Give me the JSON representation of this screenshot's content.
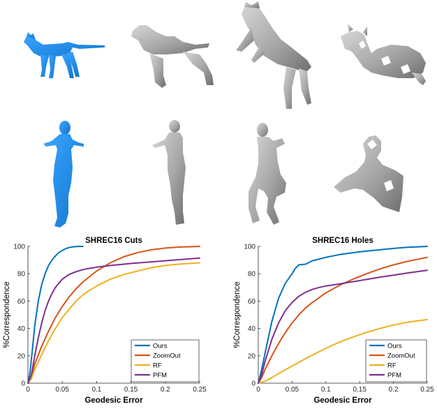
{
  "figure": {
    "colors": {
      "source_mesh": "#1f8fe8",
      "target_mesh": "#a9a9a9",
      "axis": "#262626"
    },
    "mesh_rows": [
      {
        "subject": "cat",
        "icons": [
          "cat-source-icon",
          "cat-cut-partial-icon",
          "cat-cut-pose-icon",
          "cat-holes-icon"
        ]
      },
      {
        "subject": "human",
        "icons": [
          "human-source-icon",
          "human-cut-partial-icon",
          "human-crouch-icon",
          "human-holes-icon"
        ]
      }
    ]
  },
  "chart_data": [
    {
      "type": "line",
      "title": "SHREC16 Cuts",
      "xlabel": "Geodesic Error",
      "ylabel": "%Correspondence",
      "xlim": [
        0,
        0.25
      ],
      "ylim": [
        0,
        100
      ],
      "xticks": [
        "0",
        "0.05",
        "0.1",
        "0.15",
        "0.2",
        "0.25"
      ],
      "yticks": [
        "0",
        "20",
        "40",
        "60",
        "80",
        "100"
      ],
      "legend_position": "bottom-right",
      "grid": false,
      "series": [
        {
          "name": "Ours",
          "color": "#0072BD",
          "x": [
            0,
            0.003,
            0.006,
            0.01,
            0.015,
            0.02,
            0.025,
            0.03,
            0.035,
            0.04,
            0.045,
            0.05,
            0.055,
            0.06,
            0.065,
            0.07,
            0.075,
            0.08
          ],
          "y": [
            0,
            8,
            22,
            42,
            60,
            72,
            80,
            86,
            90,
            93,
            95.5,
            97,
            98.3,
            99.2,
            99.6,
            99.9,
            100,
            100
          ]
        },
        {
          "name": "ZoomOut",
          "color": "#D95319",
          "x": [
            0,
            0.005,
            0.01,
            0.02,
            0.03,
            0.04,
            0.05,
            0.06,
            0.07,
            0.08,
            0.09,
            0.1,
            0.12,
            0.14,
            0.16,
            0.18,
            0.2,
            0.22,
            0.25
          ],
          "y": [
            0,
            5,
            14,
            27,
            38,
            48,
            56,
            63,
            69,
            74,
            78,
            82,
            88,
            92.5,
            95.5,
            97.5,
            98.8,
            99.5,
            100
          ]
        },
        {
          "name": "RF",
          "color": "#EDB120",
          "x": [
            0,
            0.005,
            0.01,
            0.02,
            0.03,
            0.04,
            0.05,
            0.06,
            0.07,
            0.08,
            0.09,
            0.1,
            0.12,
            0.14,
            0.16,
            0.18,
            0.2,
            0.22,
            0.25
          ],
          "y": [
            0,
            3,
            10,
            21,
            31,
            40,
            48,
            54,
            60,
            64.5,
            68,
            71,
            76,
            79.5,
            82,
            84.5,
            86,
            87,
            88
          ]
        },
        {
          "name": "PFM",
          "color": "#7E2F8E",
          "x": [
            0,
            0.005,
            0.01,
            0.015,
            0.02,
            0.025,
            0.03,
            0.035,
            0.04,
            0.05,
            0.06,
            0.07,
            0.08,
            0.09,
            0.1,
            0.12,
            0.15,
            0.2,
            0.25
          ],
          "y": [
            0,
            6,
            20,
            33,
            44,
            53,
            60,
            65.5,
            70,
            76,
            79.5,
            81.5,
            83,
            84,
            84.8,
            86,
            87.5,
            89.5,
            91.5
          ]
        }
      ]
    },
    {
      "type": "line",
      "title": "SHREC16 Holes",
      "xlabel": "Geodesic Error",
      "ylabel": "%Correspondence",
      "xlim": [
        0,
        0.25
      ],
      "ylim": [
        0,
        100
      ],
      "xticks": [
        "0",
        "0.05",
        "0.1",
        "0.15",
        "0.2",
        "0.25"
      ],
      "yticks": [
        "0",
        "20",
        "40",
        "60",
        "80",
        "100"
      ],
      "legend_position": "bottom-right",
      "grid": false,
      "series": [
        {
          "name": "Ours",
          "color": "#0072BD",
          "x": [
            0,
            0.005,
            0.01,
            0.02,
            0.03,
            0.04,
            0.05,
            0.055,
            0.06,
            0.07,
            0.08,
            0.1,
            0.12,
            0.15,
            0.18,
            0.2,
            0.22,
            0.25
          ],
          "y": [
            0,
            10,
            22,
            45,
            62,
            73,
            80,
            84,
            86.5,
            87,
            89.5,
            92,
            94,
            96,
            97.5,
            98.5,
            99.3,
            100
          ]
        },
        {
          "name": "ZoomOut",
          "color": "#D95319",
          "x": [
            0,
            0.005,
            0.01,
            0.02,
            0.03,
            0.04,
            0.05,
            0.06,
            0.07,
            0.08,
            0.1,
            0.12,
            0.14,
            0.16,
            0.18,
            0.2,
            0.22,
            0.25
          ],
          "y": [
            0,
            4,
            10,
            20,
            29,
            37,
            44,
            50,
            55,
            59,
            66,
            71.5,
            76,
            80,
            83.5,
            86.5,
            89,
            92
          ]
        },
        {
          "name": "RF",
          "color": "#EDB120",
          "x": [
            0,
            0.01,
            0.02,
            0.03,
            0.05,
            0.07,
            0.1,
            0.12,
            0.15,
            0.18,
            0.2,
            0.22,
            0.25
          ],
          "y": [
            0,
            1.5,
            4,
            7,
            12.5,
            18,
            25.5,
            30,
            35.5,
            40,
            42.5,
            44.5,
            46.5
          ]
        },
        {
          "name": "PFM",
          "color": "#7E2F8E",
          "x": [
            0,
            0.005,
            0.01,
            0.02,
            0.03,
            0.04,
            0.05,
            0.06,
            0.07,
            0.08,
            0.09,
            0.1,
            0.12,
            0.15,
            0.18,
            0.2,
            0.22,
            0.25
          ],
          "y": [
            0,
            6,
            16,
            32,
            44,
            53,
            59,
            63.5,
            66.5,
            68.5,
            70,
            71,
            72.5,
            75,
            77.5,
            79,
            80.5,
            82.5
          ]
        }
      ]
    }
  ]
}
